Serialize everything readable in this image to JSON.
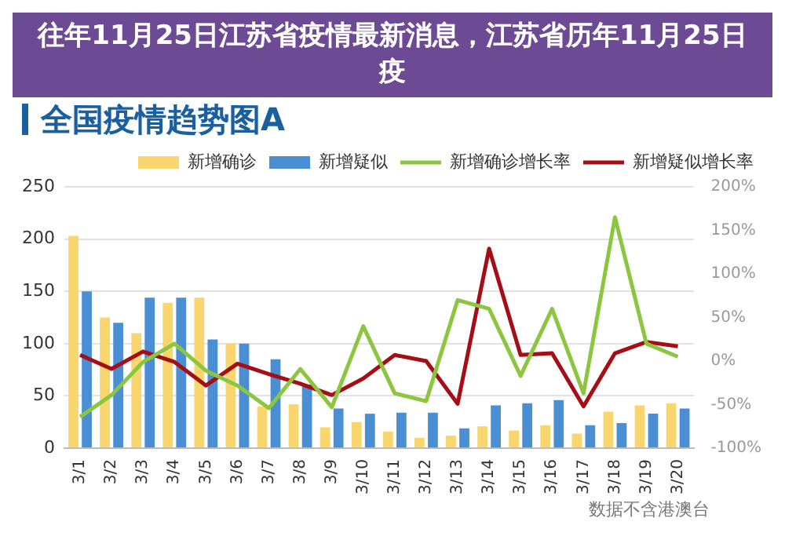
{
  "chart_data": {
    "type": "bar",
    "title": "全国疫情趋势图A",
    "categories": [
      "3/1",
      "3/2",
      "3/3",
      "3/4",
      "3/5",
      "3/6",
      "3/7",
      "3/8",
      "3/9",
      "3/10",
      "3/11",
      "3/12",
      "3/13",
      "3/14",
      "3/15",
      "3/16",
      "3/17",
      "3/18",
      "3/19",
      "3/20"
    ],
    "series": [
      {
        "name": "新增确诊",
        "color": "#f9d56e",
        "values": [
          203,
          125,
          110,
          139,
          144,
          100,
          40,
          42,
          20,
          25,
          16,
          10,
          12,
          21,
          17,
          22,
          14,
          35,
          41,
          43
        ]
      },
      {
        "name": "新增疑似",
        "color": "#4a8fd4",
        "values": [
          150,
          120,
          144,
          144,
          104,
          100,
          85,
          61,
          38,
          33,
          34,
          34,
          19,
          41,
          43,
          46,
          22,
          24,
          33,
          38
        ]
      },
      {
        "name": "新增确诊增长率",
        "type": "line",
        "axis": "y2",
        "color": "#8cc63f",
        "values": [
          -64,
          -39,
          -1,
          20,
          -11,
          -28,
          -54,
          -9,
          -53,
          40,
          -37,
          -46,
          70,
          60,
          -17,
          60,
          -37,
          165,
          20,
          5
        ]
      },
      {
        "name": "新增疑似增长率",
        "type": "line",
        "axis": "y2",
        "color": "#a50e15",
        "values": [
          7,
          -9,
          11,
          -1,
          -28,
          -3,
          -15,
          -26,
          -39,
          -20,
          7,
          0,
          -49,
          129,
          7,
          9,
          -52,
          9,
          22,
          17
        ]
      }
    ],
    "ylim": [
      0,
      250
    ],
    "yticks": [
      0,
      50,
      100,
      150,
      200,
      250
    ],
    "y2lim": [
      -100,
      200
    ],
    "y2ticks": [
      {
        "value": -100,
        "label": "-100%"
      },
      {
        "value": -50,
        "label": "-50%"
      },
      {
        "value": 0,
        "label": "0%"
      },
      {
        "value": 50,
        "label": "50%"
      },
      {
        "value": 100,
        "label": "100%"
      },
      {
        "value": 150,
        "label": "150%"
      },
      {
        "value": 200,
        "label": "200%"
      }
    ],
    "grid": "y",
    "legend": "top right",
    "marker": "none",
    "line_style": "solid",
    "annotations": [
      "往年11月25日江苏省疫情最新消息，江苏省历年11月25日疫",
      "数据不含港澳台"
    ]
  }
}
